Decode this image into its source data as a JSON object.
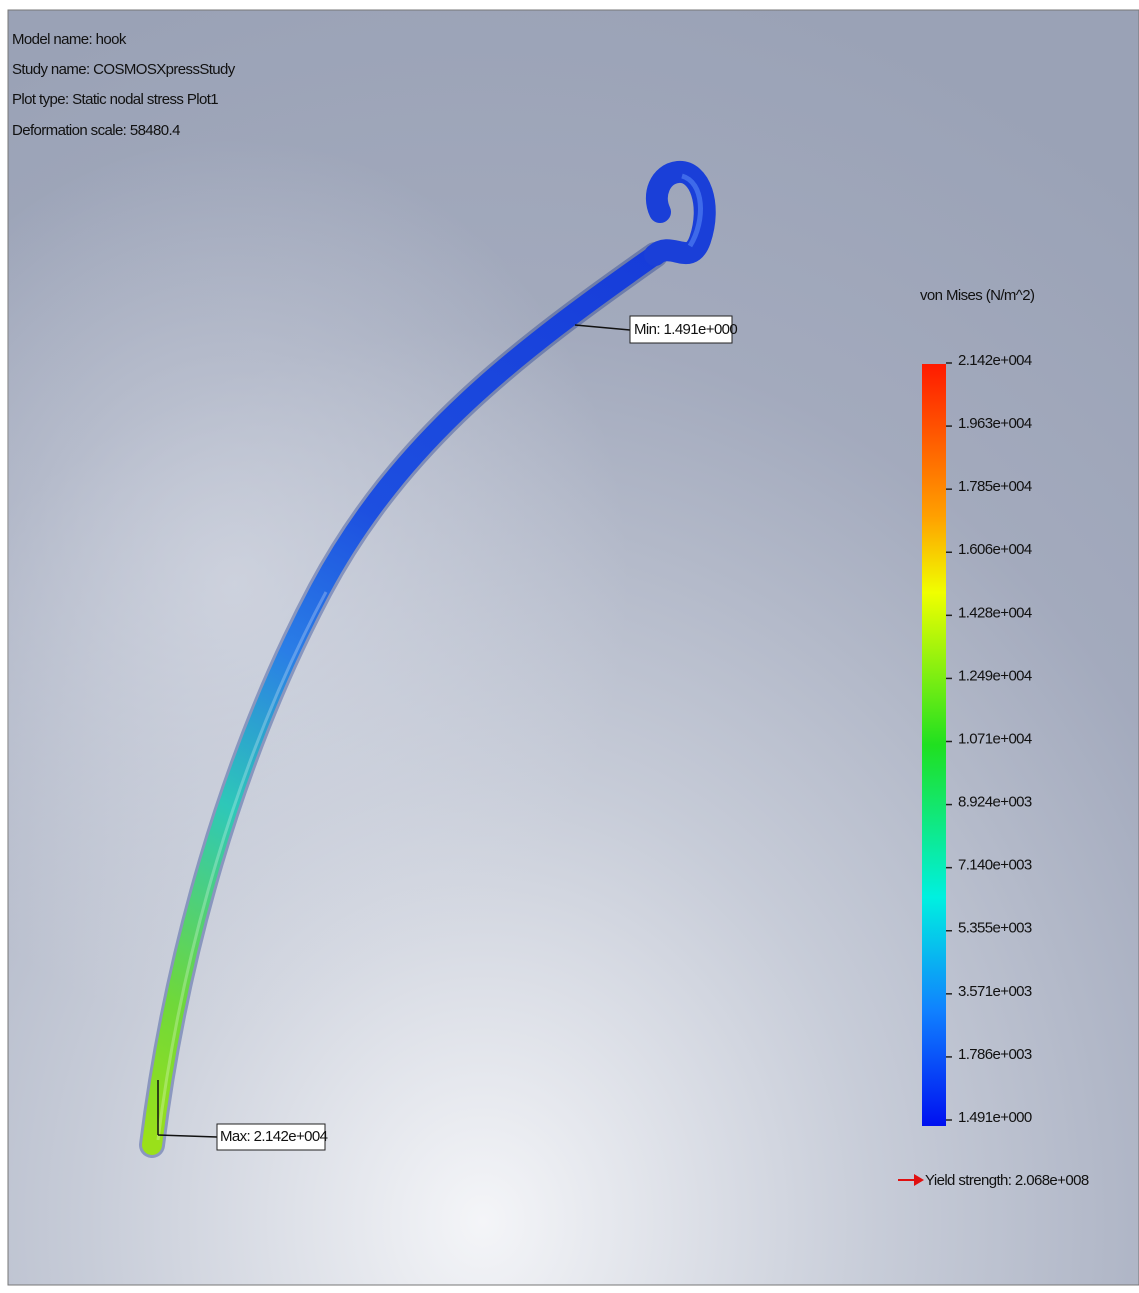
{
  "header": {
    "lines": [
      "Model name: hook",
      "Study name: COSMOSXpressStudy",
      "Plot type: Static nodal stress Plot1",
      "Deformation scale: 58480.4"
    ]
  },
  "legend": {
    "title": "von Mises (N/m^2)",
    "labels": [
      "2.142e+004",
      "1.963e+004",
      "1.785e+004",
      "1.606e+004",
      "1.428e+004",
      "1.249e+004",
      "1.071e+004",
      "8.924e+003",
      "7.140e+003",
      "5.355e+003",
      "3.571e+003",
      "1.786e+003",
      "1.491e+000"
    ],
    "yield": "Yield strength: 2.068e+008"
  },
  "annotations": {
    "min": "Min: 1.491e+000",
    "max": "Max: 2.142e+004"
  }
}
